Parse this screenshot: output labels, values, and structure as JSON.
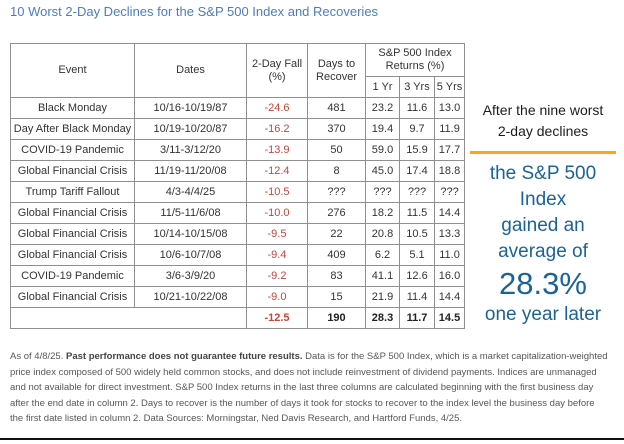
{
  "title": "10 Worst 2-Day Declines for the S&P 500 Index and Recoveries",
  "chart_data": {
    "type": "table",
    "title": "10 Worst 2-Day Declines for the S&P 500 Index and Recoveries",
    "header": {
      "event": "Event",
      "dates": "Dates",
      "fall": "2-Day Fall (%)",
      "days": "Days to Recover",
      "returns_group": "S&P 500 Index Returns (%)",
      "yr1": "1 Yr",
      "yr3": "3 Yrs",
      "yr5": "5 Yrs"
    },
    "rows": [
      {
        "event": "Black Monday",
        "dates": "10/16-10/19/87",
        "fall": "-24.6",
        "days": "481",
        "yr1": "23.2",
        "yr3": "11.6",
        "yr5": "13.0"
      },
      {
        "event": "Day After Black Monday",
        "dates": "10/19-10/20/87",
        "fall": "-16.2",
        "days": "370",
        "yr1": "19.4",
        "yr3": "9.7",
        "yr5": "11.9"
      },
      {
        "event": "COVID-19 Pandemic",
        "dates": "3/11-3/12/20",
        "fall": "-13.9",
        "days": "50",
        "yr1": "59.0",
        "yr3": "15.9",
        "yr5": "17.7"
      },
      {
        "event": "Global Financial Crisis",
        "dates": "11/19-11/20/08",
        "fall": "-12.4",
        "days": "8",
        "yr1": "45.0",
        "yr3": "17.4",
        "yr5": "18.8"
      },
      {
        "event": "Trump Tariff Fallout",
        "dates": "4/3-4/4/25",
        "fall": "-10.5",
        "days": "???",
        "yr1": "???",
        "yr3": "???",
        "yr5": "???"
      },
      {
        "event": "Global Financial Crisis",
        "dates": "11/5-11/6/08",
        "fall": "-10.0",
        "days": "276",
        "yr1": "18.2",
        "yr3": "11.5",
        "yr5": "14.4"
      },
      {
        "event": "Global Financial Crisis",
        "dates": "10/14-10/15/08",
        "fall": "-9.5",
        "days": "22",
        "yr1": "20.8",
        "yr3": "10.5",
        "yr5": "13.3"
      },
      {
        "event": "Global Financial Crisis",
        "dates": "10/6-10/7/08",
        "fall": "-9.4",
        "days": "409",
        "yr1": "6.2",
        "yr3": "5.1",
        "yr5": "11.0"
      },
      {
        "event": "COVID-19 Pandemic",
        "dates": "3/6-3/9/20",
        "fall": "-9.2",
        "days": "83",
        "yr1": "41.1",
        "yr3": "12.6",
        "yr5": "16.0"
      },
      {
        "event": "Global Financial Crisis",
        "dates": "10/21-10/22/08",
        "fall": "-9.0",
        "days": "15",
        "yr1": "21.9",
        "yr3": "11.4",
        "yr5": "14.4"
      }
    ],
    "average": {
      "fall": "-12.5",
      "days": "190",
      "yr1": "28.3",
      "yr3": "11.7",
      "yr5": "14.5"
    }
  },
  "side_panel": {
    "intro": "After the nine worst\n2-day declines",
    "statement": "the S&P 500\nIndex\ngained an\naverage of",
    "highlight": "28.3%",
    "closing": "one year later"
  },
  "footnote": {
    "as_of": "As of 4/8/25. ",
    "bold": "Past performance does not guarantee future results.",
    "rest": " Data is for the S&P 500 Index, which is a market capitalization-weighted price index composed of 500 widely held common stocks, and does not include reinvestment of dividend payments. Indices are unmanaged and not available for direct investment. S&P 500 Index returns in the last three columns are calculated beginning with the first business day after the end date in column 2. Days to recover is the number of days it took for stocks to recover to the index level the business day before the first date listed in column 2. Data Sources: Morningstar, Ned Davis Research, and Hartford Funds, 4/25."
  },
  "colors": {
    "title_blue": "#4d7cbe",
    "accent_blue": "#1b6397",
    "negative_red": "#c5463d",
    "divider_orange": "#f5a81e",
    "border_gray": "#8f8f8f"
  }
}
